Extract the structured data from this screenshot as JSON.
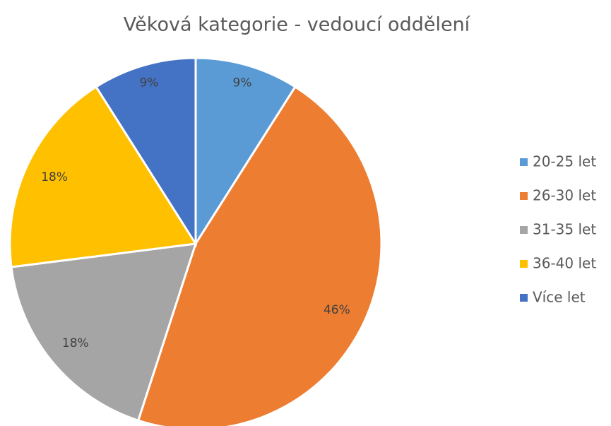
{
  "chart_data": {
    "type": "pie",
    "title": "Věková kategorie - vedoucí oddělení",
    "categories": [
      "20-25 let",
      "26-30 let",
      "31-35 let",
      "36-40 let",
      "Více let"
    ],
    "values": [
      9,
      46,
      18,
      18,
      9
    ],
    "value_labels": [
      "9%",
      "46%",
      "18%",
      "18%",
      "9%"
    ],
    "colors": [
      "#5b9bd5",
      "#ed7d31",
      "#a5a5a5",
      "#ffc000",
      "#4472c4"
    ],
    "legend": "right"
  }
}
